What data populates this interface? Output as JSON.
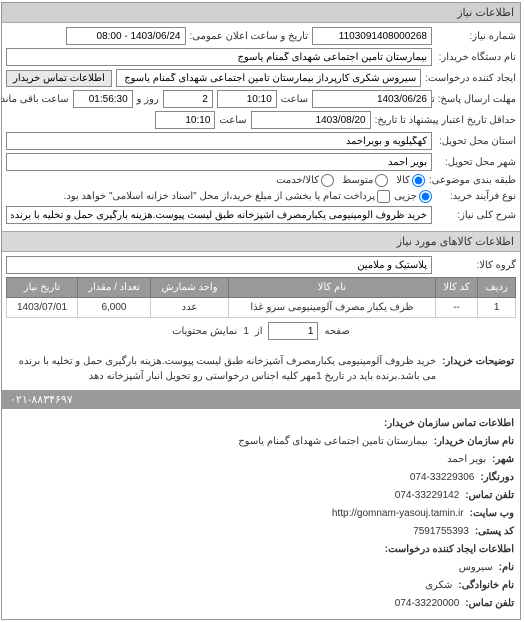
{
  "panel_title": "اطلاعات نیاز",
  "form": {
    "request_no_label": "شماره نیاز:",
    "request_no": "1103091408000268",
    "announce_label": "تاریخ و ساعت اعلان عمومی:",
    "announce_value": "1403/06/24 - 08:00",
    "buyer_org_label": "نام دستگاه خریدار:",
    "buyer_org": "بیمارستان تامین اجتماعی شهدای گمنام یاسوج",
    "requester_label": "ایجاد کننده درخواست:",
    "requester": "سیروس شکری کارپرداز بیمارستان تامین اجتماعی شهدای گمنام یاسوج",
    "contact_btn": "اطلاعات تماس خریدار",
    "deadline_from_label": "مهلت ارسال پاسخ: تا تاریخ:",
    "deadline_date": "1403/06/26",
    "time_label": "ساعت",
    "deadline_time": "10:10",
    "days_label": "روز و",
    "days_value": "2",
    "remaining_time": "01:56:30",
    "remaining_label": "ساعت باقی مانده",
    "validity_label": "حداقل تاریخ اعتبار پیشنهاد تا تاریخ:",
    "validity_date": "1403/08/20",
    "validity_time": "10:10",
    "delivery_province_label": "استان محل تحویل:",
    "delivery_province": "کهگیلویه و بویراحمد",
    "delivery_city_label": "شهر محل تحویل:",
    "delivery_city": "بویر احمد",
    "classification_label": "طبقه بندی موضوعی:",
    "radio_goods": "کالا",
    "radio_medium": "متوسط",
    "radio_service": "کالا/خدمت",
    "payment_label": "نوع فرآیند خرید:",
    "radio_partial": "جزیی",
    "payment_note": "پرداخت تمام یا بخشی از مبلغ خرید،از محل \"اسناد خزانه اسلامی\" خواهد بود.",
    "desc_label": "شرح کلی نیاز:",
    "desc_value": "خرید ظروف آلومینیومی یکبارمصرف آشپزخانه طبق لیست پیوست.هزینه بارگیری حمل و تخلیه با برنده می باشد"
  },
  "items_section_title": "اطلاعات کالاهای مورد نیاز",
  "item_group_label": "گروه کالا:",
  "item_group_value": "پلاستیک و ملامین",
  "table": {
    "headers": [
      "ردیف",
      "کد کالا",
      "نام کالا",
      "واحد شمارش",
      "تعداد / مقدار",
      "تاریخ نیاز"
    ],
    "rows": [
      [
        "1",
        "--",
        "ظرف یکبار مصرف آلومینیومی سرو غذا",
        "عدد",
        "6,000",
        "1403/07/01"
      ]
    ]
  },
  "pager": {
    "page_label": "صفحه",
    "page_value": "1",
    "of_label": "از",
    "total": "1",
    "per_page_label": "نمایش محتویات"
  },
  "notes": {
    "label": "توضیحات خریدار:",
    "text": "خرید ظروف آلومینیومی یکبارمصرف آشپزخانه طبق لیست پیوست.هزینه بارگیری حمل و تخلیه با برنده می باشد.برنده باید در تاریخ 1مهر کلیه اجناس درخواستی رو تحویل انبار آشپزخانه دهد"
  },
  "contact": {
    "section_title": "اطلاعات تماس سازمان خریدار:",
    "org_label": "نام سازمان خریدار:",
    "org": "بیمارستان تامین اجتماعی شهدای گمنام یاسوج",
    "city_label": "شهر:",
    "city": "بویر احمد",
    "fax_label": "دورنگار:",
    "fax": "074-33229306",
    "phone_label": "تلفن تماس:",
    "phone": "074-33229142",
    "website_label": "وب سایت:",
    "website": "http://gomnam-yasouj.tamin.ir",
    "postal_label": "کد پستی:",
    "postal": "7591755393",
    "creator_section": "اطلاعات ایجاد کننده درخواست:",
    "name_label": "نام:",
    "name": "سیروس",
    "family_label": "نام خانوادگی:",
    "family": "شکری",
    "creator_phone_label": "تلفن تماس:",
    "creator_phone": "074-33220000"
  },
  "footer_phone": "۰۲۱-۸۸۳۴۶۹۷"
}
